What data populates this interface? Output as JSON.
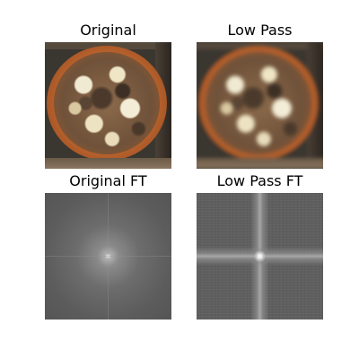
{
  "panels": [
    {
      "title": "Original"
    },
    {
      "title": "Low Pass"
    },
    {
      "title": "Original FT"
    },
    {
      "title": "Low Pass FT"
    }
  ]
}
